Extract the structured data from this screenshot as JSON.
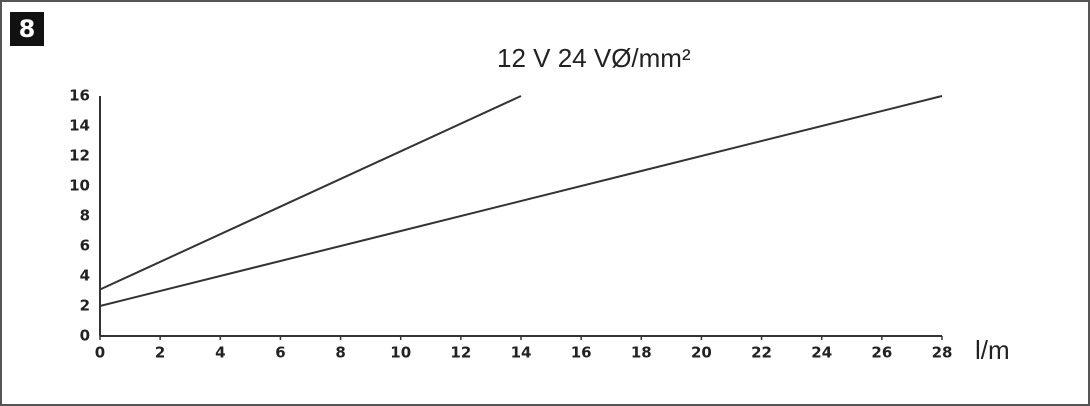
{
  "badge": "8",
  "chart_data": {
    "type": "line",
    "title": "12 V 24 VØ/mm²",
    "x_label": "l/m",
    "series": [
      {
        "color": "#333333",
        "x": [
          0,
          14
        ],
        "values": [
          3.1,
          16
        ]
      },
      {
        "color": "#333333",
        "x": [
          0,
          28
        ],
        "values": [
          2,
          16
        ]
      }
    ],
    "xlim": [
      0,
      28
    ],
    "xticks": [
      0,
      2,
      4,
      6,
      8,
      10,
      12,
      14,
      16,
      18,
      20,
      22,
      24,
      26,
      28
    ],
    "ylim": [
      0,
      16
    ],
    "yticks": [
      0,
      2,
      4,
      6,
      8,
      10,
      12,
      14,
      16
    ],
    "grid": false
  }
}
